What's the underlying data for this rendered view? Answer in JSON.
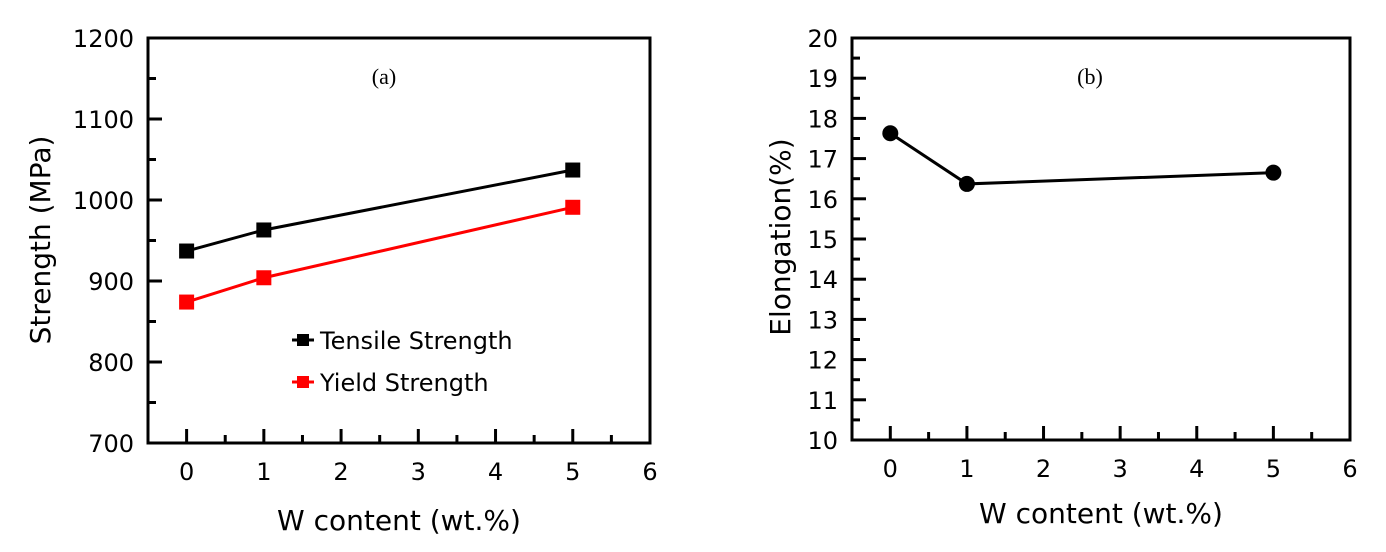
{
  "chart_data": [
    {
      "type": "line",
      "panel_label": "(a)",
      "title": "",
      "xlabel": "W content (wt.%)",
      "ylabel": "Strength (MPa)",
      "xlim": [
        -0.5,
        6
      ],
      "ylim": [
        700,
        1200
      ],
      "xticks": [
        0,
        1,
        2,
        3,
        4,
        5,
        6
      ],
      "xtick_labels": [
        "0",
        "1",
        "2",
        "3",
        "4",
        "5",
        "6"
      ],
      "x_minor_step": 0.5,
      "yticks": [
        700,
        800,
        900,
        1000,
        1100,
        1200
      ],
      "ytick_labels": [
        "700",
        "800",
        "900",
        "1000",
        "1100",
        "1200"
      ],
      "y_minor_step": 50,
      "grid": false,
      "legend_position": "center-right",
      "x": [
        0,
        1,
        5
      ],
      "series": [
        {
          "name": "Tensile Strength",
          "values": [
            937,
            963,
            1037
          ],
          "color": "#000000",
          "marker": "square"
        },
        {
          "name": "Yield Strength",
          "values": [
            874,
            904,
            991
          ],
          "color": "#ff0000",
          "marker": "square"
        }
      ]
    },
    {
      "type": "line",
      "panel_label": "(b)",
      "title": "",
      "xlabel": "W content (wt.%)",
      "ylabel": "Elongation(%)",
      "xlim": [
        -0.5,
        6
      ],
      "ylim": [
        10,
        20
      ],
      "xticks": [
        0,
        1,
        2,
        3,
        4,
        5,
        6
      ],
      "xtick_labels": [
        "0",
        "1",
        "2",
        "3",
        "4",
        "5",
        "6"
      ],
      "x_minor_step": 0.5,
      "yticks": [
        10,
        11,
        12,
        13,
        14,
        15,
        16,
        17,
        18,
        19,
        20
      ],
      "ytick_labels": [
        "10",
        "11",
        "12",
        "13",
        "14",
        "15",
        "16",
        "17",
        "18",
        "19",
        "20"
      ],
      "y_minor_step": 0.5,
      "grid": false,
      "legend_position": "none",
      "x": [
        0,
        1,
        5
      ],
      "series": [
        {
          "name": "Elongation",
          "values": [
            17.63,
            16.37,
            16.65
          ],
          "color": "#000000",
          "marker": "circle"
        }
      ]
    }
  ]
}
